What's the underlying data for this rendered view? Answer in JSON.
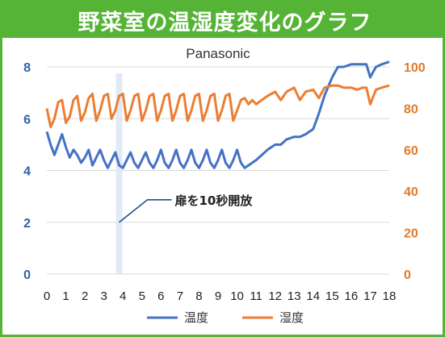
{
  "header": {
    "title": "野菜室の温湿度変化のグラフ"
  },
  "chart_data": {
    "type": "line",
    "subtitle": "Panasonic",
    "x_range": [
      0,
      18
    ],
    "x_ticks": [
      "0",
      "1",
      "2",
      "3",
      "4",
      "5",
      "6",
      "7",
      "8",
      "9",
      "10",
      "11",
      "12",
      "13",
      "14",
      "15",
      "16",
      "17",
      "18"
    ],
    "y_left": {
      "range": [
        0,
        8
      ],
      "ticks": [
        "0",
        "2",
        "4",
        "6",
        "8"
      ]
    },
    "y_right": {
      "range": [
        0,
        100
      ],
      "ticks": [
        "0",
        "20",
        "40",
        "60",
        "80",
        "100"
      ]
    },
    "grid": true,
    "highlight_x": 3.8,
    "annotation": {
      "text": "扉を10秒開放",
      "x": 3.8,
      "y": 2.0
    },
    "legend_position": "bottom",
    "series": [
      {
        "name": "温度",
        "axis": "left",
        "color": "#4472c4",
        "x": [
          0,
          0.2,
          0.4,
          0.6,
          0.8,
          1.0,
          1.2,
          1.4,
          1.6,
          1.8,
          2.0,
          2.2,
          2.4,
          2.6,
          2.8,
          3.0,
          3.2,
          3.4,
          3.6,
          3.8,
          4.0,
          4.2,
          4.4,
          4.6,
          4.8,
          5.0,
          5.2,
          5.4,
          5.6,
          5.8,
          6.0,
          6.2,
          6.4,
          6.6,
          6.8,
          7.0,
          7.2,
          7.4,
          7.6,
          7.8,
          8.0,
          8.2,
          8.4,
          8.6,
          8.8,
          9.0,
          9.2,
          9.4,
          9.6,
          9.8,
          10.0,
          10.2,
          10.4,
          10.6,
          10.8,
          11.0,
          11.3,
          11.6,
          12.0,
          12.3,
          12.6,
          13.0,
          13.3,
          13.6,
          14.0,
          14.3,
          14.6,
          15.0,
          15.3,
          15.6,
          16.0,
          16.3,
          16.6,
          16.8,
          17.0,
          17.3,
          17.6,
          18.0
        ],
        "values": [
          5.5,
          5.0,
          4.6,
          5.0,
          5.4,
          4.9,
          4.5,
          4.8,
          4.6,
          4.3,
          4.5,
          4.8,
          4.2,
          4.5,
          4.8,
          4.4,
          4.1,
          4.4,
          4.7,
          4.2,
          4.1,
          4.4,
          4.7,
          4.3,
          4.1,
          4.4,
          4.7,
          4.3,
          4.1,
          4.4,
          4.8,
          4.3,
          4.1,
          4.4,
          4.8,
          4.3,
          4.1,
          4.4,
          4.8,
          4.3,
          4.1,
          4.4,
          4.8,
          4.3,
          4.1,
          4.4,
          4.8,
          4.3,
          4.1,
          4.4,
          4.8,
          4.3,
          4.1,
          4.2,
          4.3,
          4.4,
          4.6,
          4.8,
          5.0,
          5.0,
          5.2,
          5.3,
          5.3,
          5.4,
          5.6,
          6.2,
          6.9,
          7.6,
          8.0,
          8.0,
          8.1,
          8.1,
          8.1,
          8.1,
          7.6,
          8.0,
          8.1,
          8.2
        ]
      },
      {
        "name": "湿度",
        "axis": "right",
        "color": "#ed7d31",
        "x": [
          0,
          0.2,
          0.4,
          0.6,
          0.8,
          1.0,
          1.2,
          1.4,
          1.6,
          1.8,
          2.0,
          2.2,
          2.4,
          2.6,
          2.8,
          3.0,
          3.2,
          3.4,
          3.6,
          3.8,
          4.0,
          4.2,
          4.4,
          4.6,
          4.8,
          5.0,
          5.2,
          5.4,
          5.6,
          5.8,
          6.0,
          6.2,
          6.4,
          6.6,
          6.8,
          7.0,
          7.2,
          7.4,
          7.6,
          7.8,
          8.0,
          8.2,
          8.4,
          8.6,
          8.8,
          9.0,
          9.2,
          9.4,
          9.6,
          9.8,
          10.0,
          10.2,
          10.4,
          10.6,
          10.8,
          11.0,
          11.3,
          11.6,
          12.0,
          12.3,
          12.6,
          13.0,
          13.3,
          13.6,
          14.0,
          14.3,
          14.6,
          15.0,
          15.3,
          15.6,
          16.0,
          16.3,
          16.6,
          16.8,
          17.0,
          17.3,
          17.6,
          18.0
        ],
        "values": [
          80,
          71,
          75,
          83,
          84,
          73,
          76,
          84,
          86,
          74,
          78,
          85,
          87,
          74,
          79,
          86,
          87,
          75,
          79,
          86,
          87,
          74,
          79,
          86,
          87,
          74,
          79,
          86,
          87,
          74,
          79,
          86,
          87,
          74,
          79,
          86,
          87,
          74,
          79,
          86,
          87,
          74,
          79,
          86,
          87,
          74,
          79,
          86,
          87,
          74,
          79,
          84,
          85,
          82,
          84,
          82,
          84,
          86,
          88,
          84,
          88,
          90,
          84,
          88,
          89,
          85,
          90,
          91,
          91,
          90,
          90,
          89,
          90,
          90,
          82,
          89,
          90,
          91
        ]
      }
    ]
  }
}
